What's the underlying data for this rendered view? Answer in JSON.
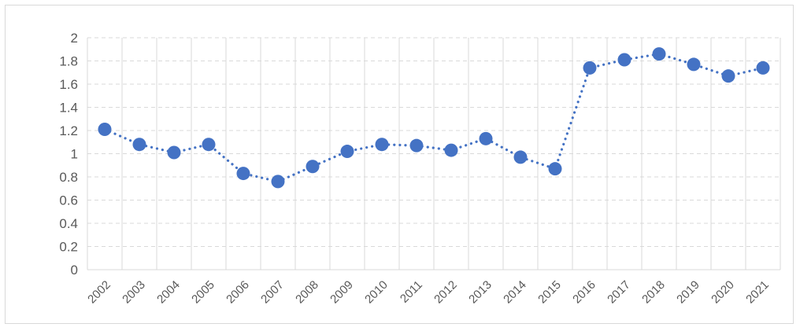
{
  "chart_data": {
    "type": "line",
    "title": "",
    "xlabel": "",
    "ylabel": "",
    "categories": [
      "2002",
      "2003",
      "2004",
      "2005",
      "2006",
      "2007",
      "2008",
      "2009",
      "2010",
      "2011",
      "2012",
      "2013",
      "2014",
      "2015",
      "2016",
      "2017",
      "2018",
      "2019",
      "2020",
      "2021"
    ],
    "series": [
      {
        "values": [
          1.21,
          1.08,
          1.01,
          1.08,
          0.83,
          0.76,
          0.89,
          1.02,
          1.08,
          1.07,
          1.03,
          1.13,
          0.97,
          0.87,
          1.74,
          1.81,
          1.86,
          1.77,
          1.67,
          1.74
        ],
        "color": "#4472c4",
        "line_style": "dotted",
        "marker": "circle"
      }
    ],
    "ylim": [
      0,
      2
    ],
    "yticks": [
      "0",
      "0.2",
      "0.4",
      "0.6",
      "0.8",
      "1",
      "1.2",
      "1.4",
      "1.6",
      "1.8",
      "2"
    ],
    "grid": {
      "horizontal": "dashed",
      "vertical": "solid"
    },
    "legend": "none"
  }
}
